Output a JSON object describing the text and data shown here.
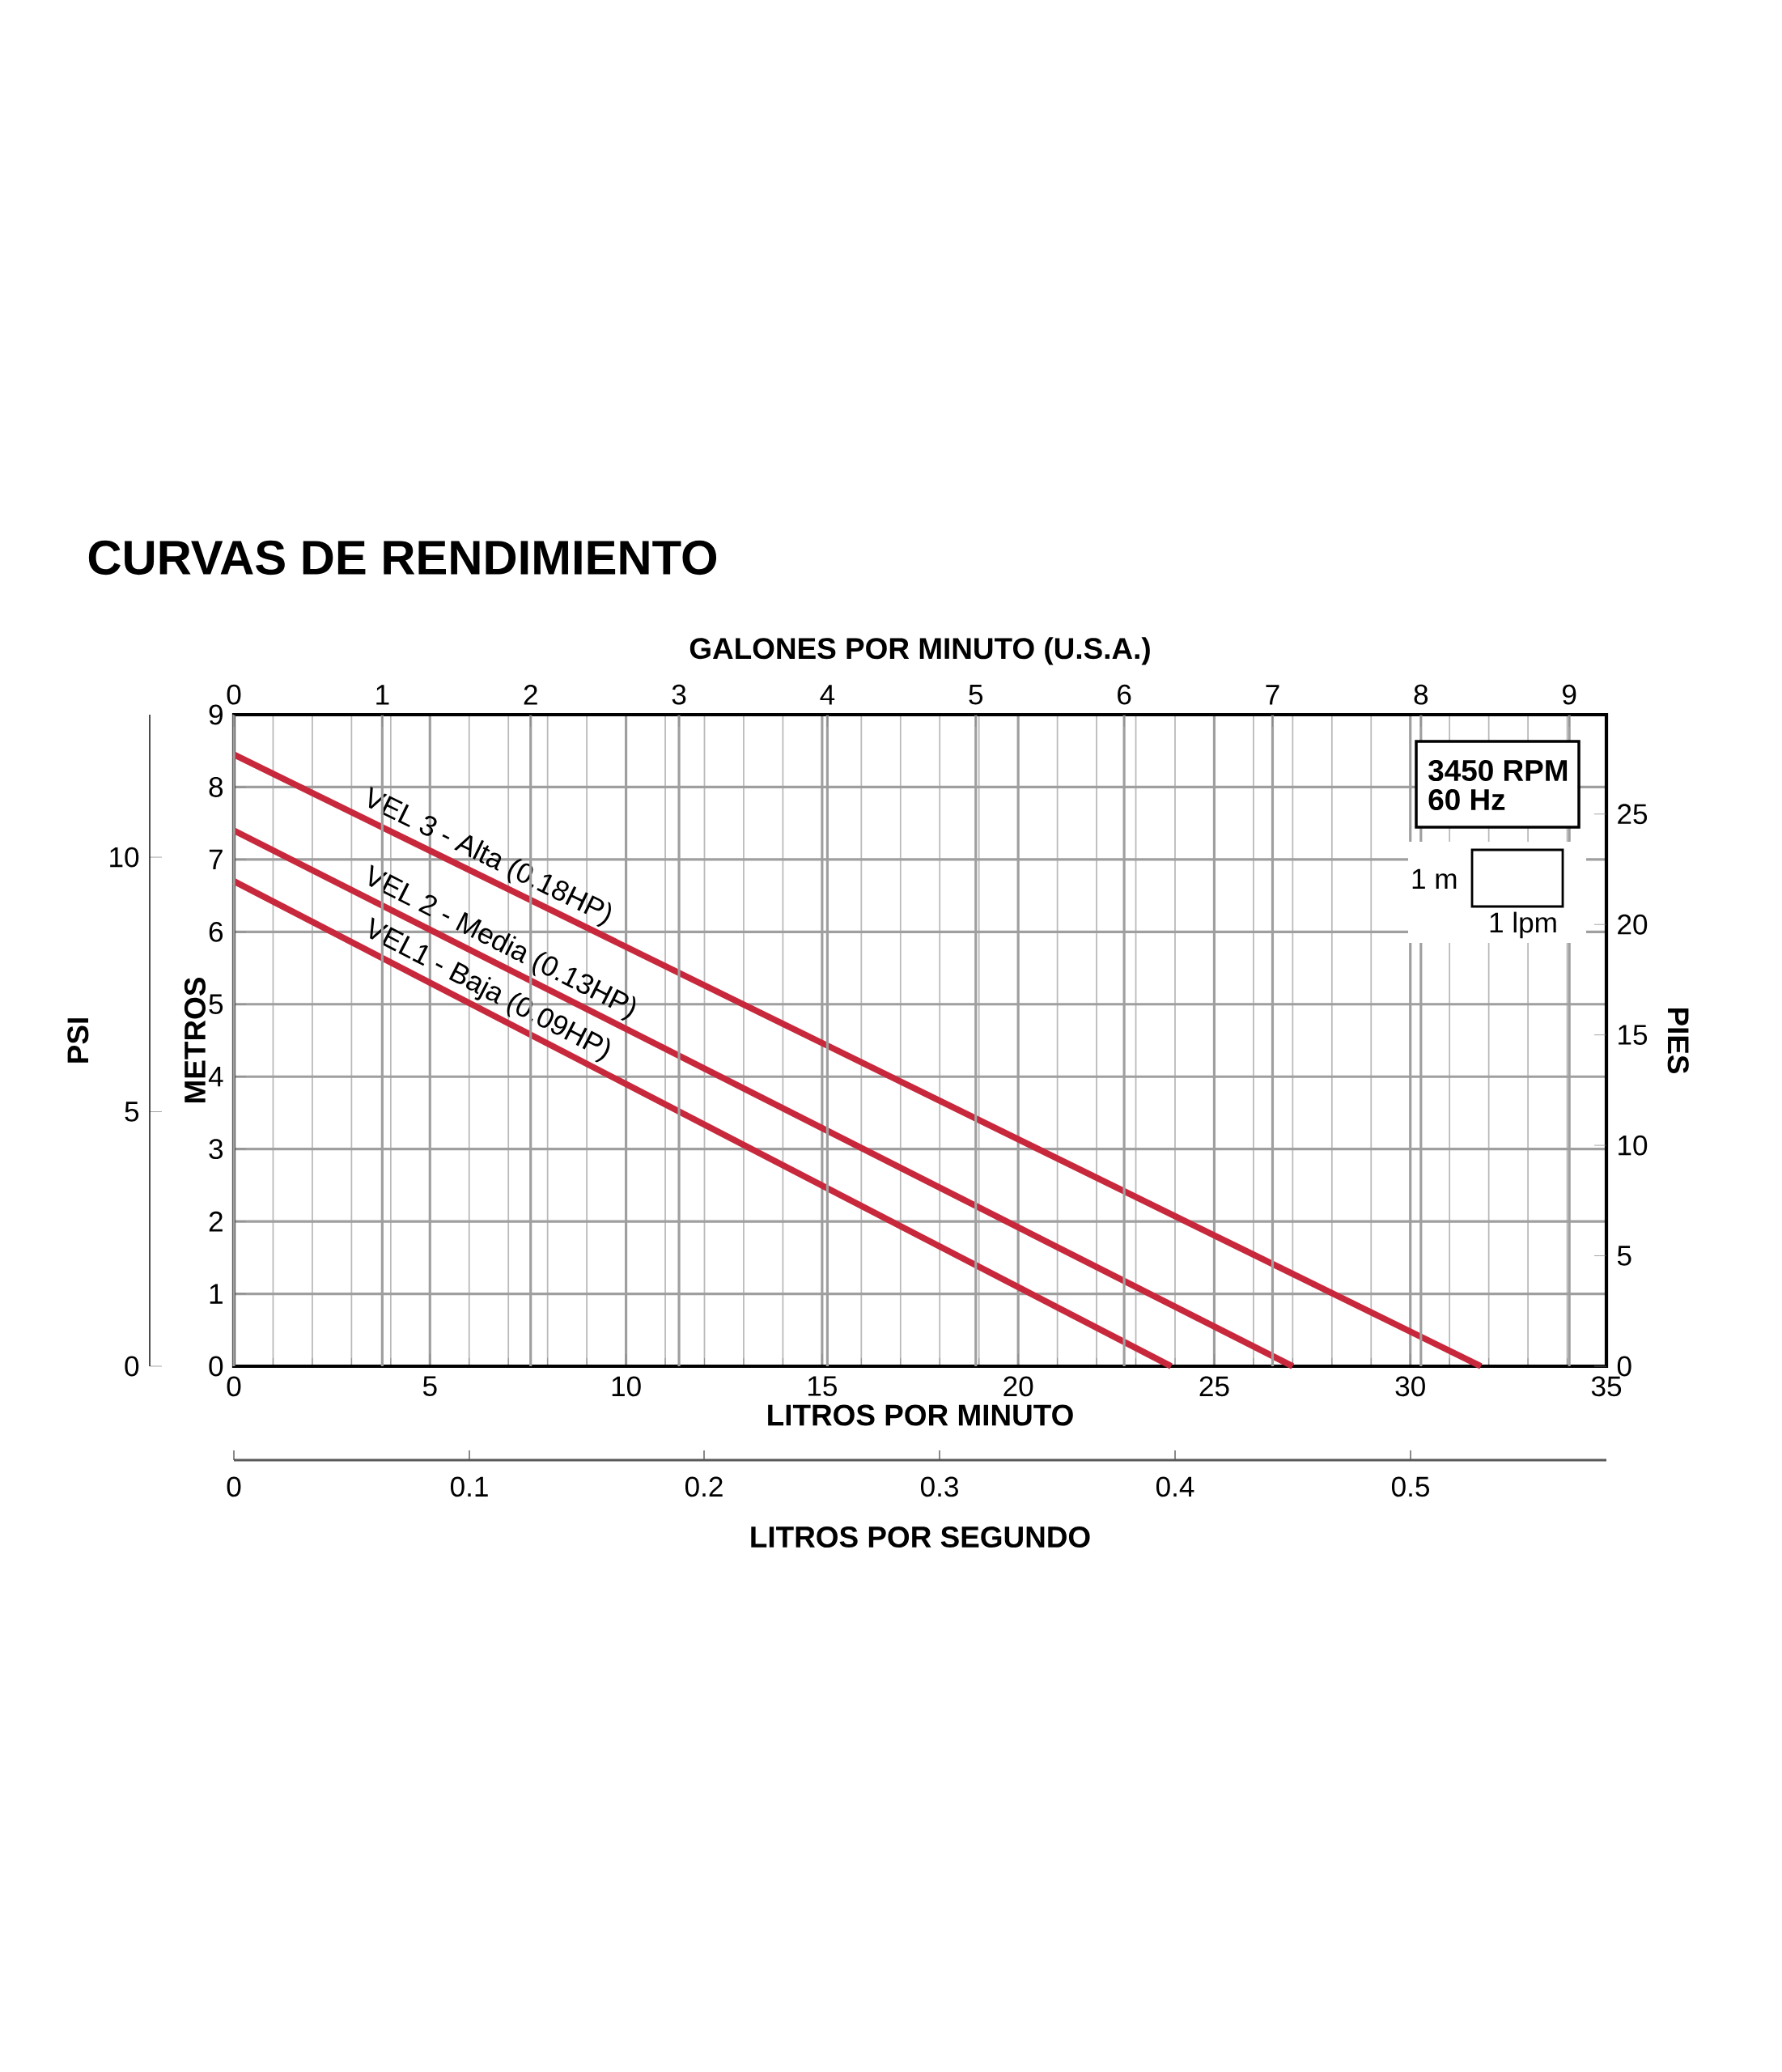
{
  "chart_data": [
    {
      "type": "line",
      "title": "CURVAS DE RENDIMIENTO",
      "xlabel": "LITROS POR MINUTO",
      "ylabel": "METROS",
      "y2label": "PSI",
      "y3label": "PIES",
      "x2label": "GALONES POR MINUTO (U.S.A.)",
      "xlim": [
        0,
        35
      ],
      "xticks": [
        0,
        5,
        10,
        15,
        20,
        25,
        30,
        35
      ],
      "ylim": [
        0,
        9
      ],
      "yticks": [
        0,
        1,
        2,
        3,
        4,
        5,
        6,
        7,
        8,
        9
      ],
      "x2lim": [
        0,
        9.25
      ],
      "x2ticks": [
        0,
        1,
        2,
        3,
        4,
        5,
        6,
        7,
        8,
        9
      ],
      "y2lim": [
        0,
        12.8
      ],
      "y2ticks": [
        0,
        5,
        10
      ],
      "y3lim": [
        0,
        29.5
      ],
      "y3ticks": [
        0,
        5,
        10,
        15,
        20,
        25
      ],
      "grid": true,
      "annotations": [
        "3450 RPM",
        "60 Hz",
        "1 m",
        "1 lpm",
        "LITROS POR SEGUNDO",
        "0",
        "0.1",
        "0.2",
        "0.3",
        "0.4",
        "0.5"
      ],
      "series": [
        {
          "name": "VEL 3 - Alta (0.18HP)",
          "color": "#c8283c",
          "x": [
            0,
            31.8
          ],
          "values": [
            8.45,
            0
          ]
        },
        {
          "name": "VEL 2 - Media (0.13HP)",
          "color": "#c8283c",
          "x": [
            0,
            27
          ],
          "values": [
            7.4,
            0
          ]
        },
        {
          "name": "VEL1 - Baja (0.09HP)",
          "color": "#c8283c",
          "x": [
            0,
            23.9
          ],
          "values": [
            6.7,
            0
          ]
        }
      ]
    }
  ]
}
